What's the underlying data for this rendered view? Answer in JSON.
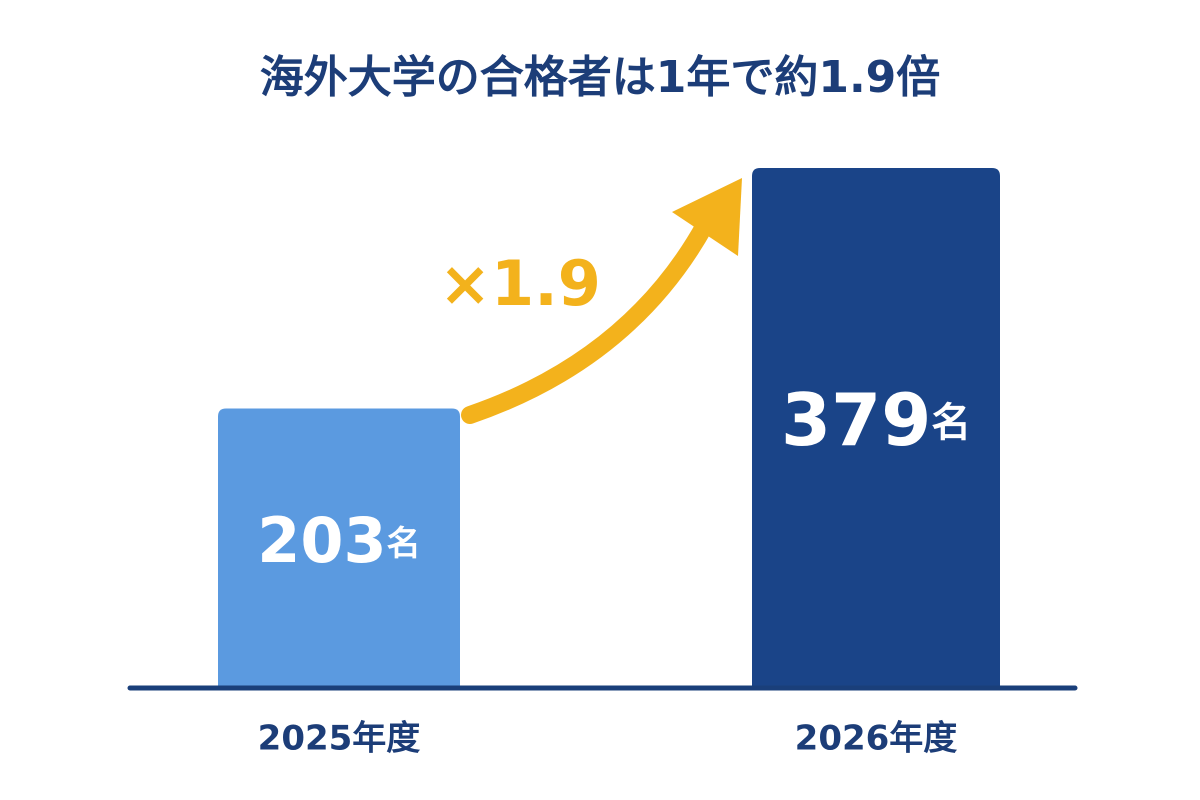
{
  "chart_data": {
    "type": "bar",
    "title": "海外大学の合格者は1年で約1.9倍",
    "categories": [
      "2025年度",
      "2026年度"
    ],
    "values": [
      203,
      379
    ],
    "value_labels": [
      "203名",
      "379名"
    ],
    "colors": [
      "#5b9ae0",
      "#1a4488"
    ],
    "annotation": "×1.9"
  }
}
